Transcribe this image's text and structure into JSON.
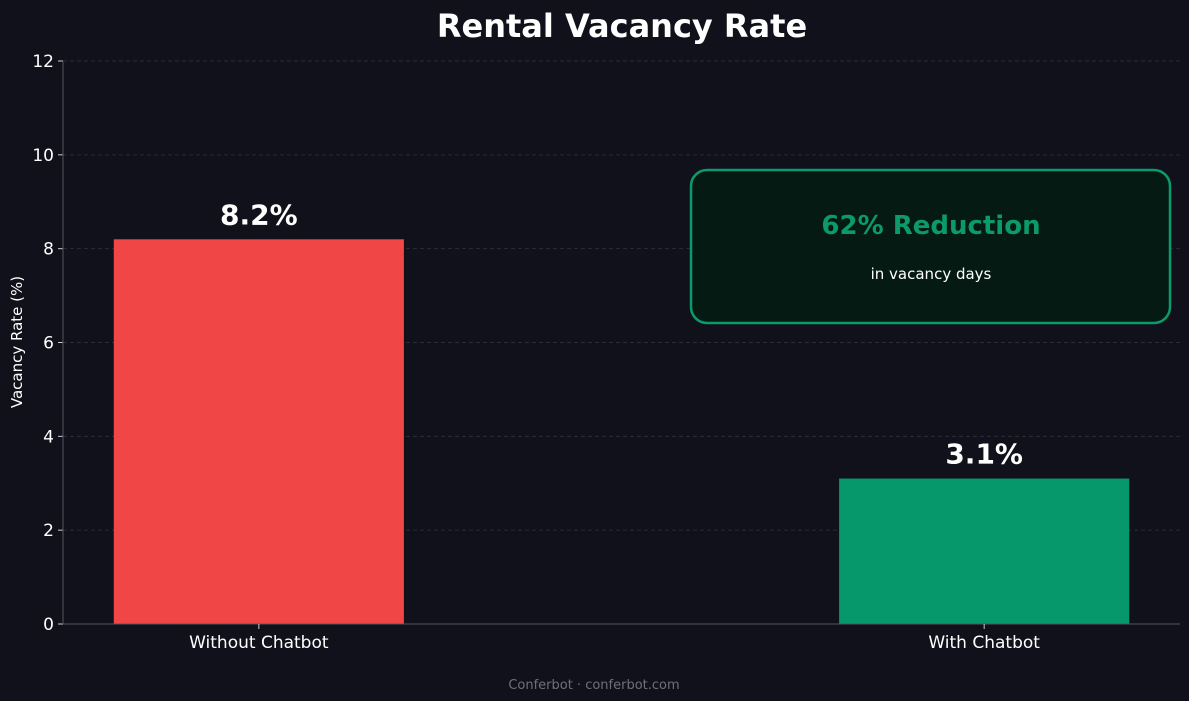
{
  "chart_data": {
    "type": "bar",
    "title": "Rental Vacancy Rate",
    "xlabel": "",
    "ylabel": "Vacancy Rate (%)",
    "categories": [
      "Without Chatbot",
      "With Chatbot"
    ],
    "values": [
      8.2,
      3.1
    ],
    "data_labels": [
      "8.2%",
      "3.1%"
    ],
    "bar_colors": [
      "#f04646",
      "#06986b"
    ],
    "ylim": [
      0,
      12
    ],
    "yticks": [
      0,
      2,
      4,
      6,
      8,
      10,
      12
    ],
    "grid": true,
    "annotation": {
      "headline": "62% Reduction",
      "subtext": "in vacancy days",
      "border_color": "#0a9a6c",
      "fill_color": "#051a12"
    }
  },
  "footer": "Conferbot · conferbot.com",
  "colors": {
    "background": "#10111a",
    "text": "#ffffff",
    "grid": "#2a2b36",
    "axis": "#55565f",
    "footer": "#6e707c"
  }
}
